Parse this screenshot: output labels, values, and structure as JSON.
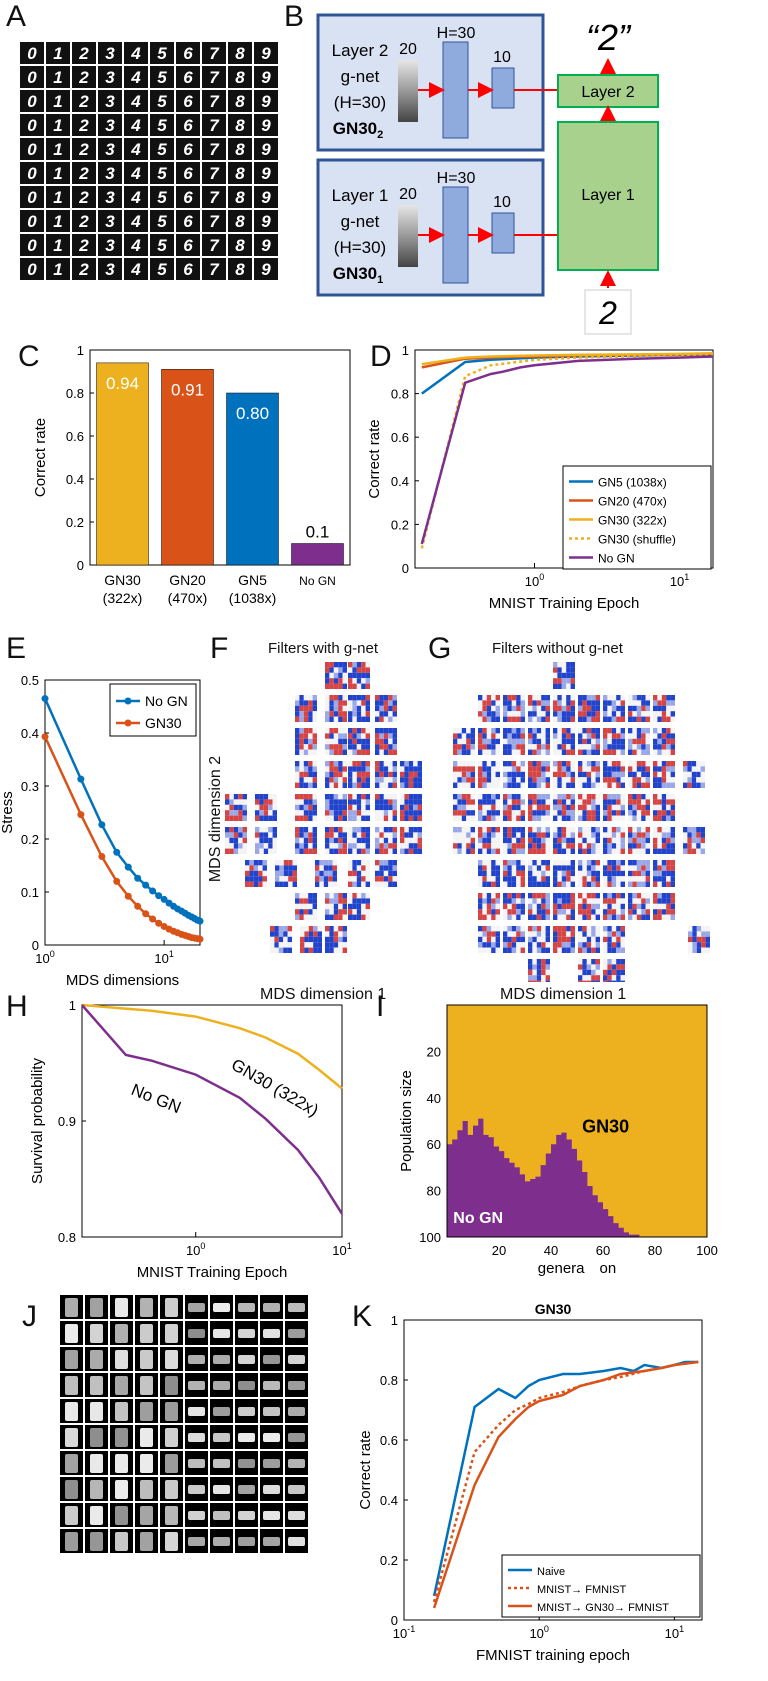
{
  "panel_letters": [
    "A",
    "B",
    "C",
    "D",
    "E",
    "F",
    "G",
    "H",
    "I",
    "J",
    "K"
  ],
  "panel_b": {
    "output_label": "“2”",
    "input_digit": "2",
    "layer2": {
      "title_lines": [
        "Layer 2",
        "g-net",
        "(H=30)"
      ],
      "gn_main": "GN30",
      "gn_sub": "2",
      "in_size": "20",
      "hidden": "H=30",
      "out_size": "10",
      "target": "Layer 2"
    },
    "layer1": {
      "title_lines": [
        "Layer 1",
        "g-net",
        "(H=30)"
      ],
      "gn_main": "GN30",
      "gn_sub": "1",
      "in_size": "20",
      "hidden": "H=30",
      "out_size": "10",
      "target": "Layer 1"
    },
    "colors": {
      "gnet_bg": "#d9e2f3",
      "gnet_border": "#2f5597",
      "hidden_fill": "#8faadc",
      "layer_fill": "#a9d18e",
      "layer_border": "#00b050",
      "arrow": "#ff0000"
    }
  },
  "panel_f_title": "Filters with g-net",
  "panel_g_title": "Filters without g-net",
  "panel_f_xlabel": "MDS dimension 1",
  "panel_g_xlabel": "MDS dimension 1",
  "panel_f_ylabel": "MDS dimension 2",
  "chart_data": [
    {
      "panel": "C",
      "type": "bar",
      "categories": [
        "GN30\n(322x)",
        "GN20\n(470x)",
        "GN5\n(1038x)",
        "No GN"
      ],
      "values": [
        0.94,
        0.91,
        0.8,
        0.1
      ],
      "value_labels": [
        "0.94",
        "0.91",
        "0.80",
        "0.1"
      ],
      "colors": [
        "#edb120",
        "#d95319",
        "#0072bd",
        "#7e2f8e"
      ],
      "ylabel": "Correct rate",
      "ylim": [
        0,
        1
      ],
      "yticks": [
        0,
        0.2,
        0.4,
        0.6,
        0.8,
        1
      ],
      "ytick_labels": [
        "0",
        "0.2",
        "0.4",
        "0.6",
        "0.8",
        "1"
      ]
    },
    {
      "panel": "D",
      "type": "line",
      "xscale": "log",
      "xlim": [
        0.15,
        17
      ],
      "ylim": [
        0,
        1
      ],
      "xlabel": "MNIST Training Epoch",
      "ylabel": "Correct rate",
      "xtick_labels": [
        "10^0",
        "10^1"
      ],
      "yticks": [
        0,
        0.2,
        0.4,
        0.6,
        0.8,
        1
      ],
      "ytick_labels": [
        "0",
        "0.2",
        "0.4",
        "0.6",
        "0.8",
        "1"
      ],
      "legend_position": "bottom-right",
      "series": [
        {
          "name": "GN5 (1038x)",
          "color": "#0072bd",
          "dash": false,
          "x": [
            0.167,
            0.333,
            0.5,
            1,
            2,
            5,
            10,
            17
          ],
          "y": [
            0.8,
            0.945,
            0.955,
            0.965,
            0.97,
            0.975,
            0.978,
            0.98
          ]
        },
        {
          "name": "GN20 (470x)",
          "color": "#d95319",
          "dash": false,
          "x": [
            0.167,
            0.333,
            0.5,
            1,
            2,
            5,
            10,
            17
          ],
          "y": [
            0.92,
            0.96,
            0.965,
            0.97,
            0.975,
            0.978,
            0.98,
            0.982
          ]
        },
        {
          "name": "GN30 (322x)",
          "color": "#edb120",
          "dash": false,
          "x": [
            0.167,
            0.333,
            0.5,
            1,
            2,
            5,
            10,
            17
          ],
          "y": [
            0.935,
            0.965,
            0.97,
            0.975,
            0.978,
            0.98,
            0.982,
            0.985
          ]
        },
        {
          "name": "GN30 (shuffle)",
          "color": "#edb120",
          "dash": true,
          "x": [
            0.167,
            0.333,
            0.5,
            1,
            2,
            5,
            10,
            17
          ],
          "y": [
            0.09,
            0.88,
            0.93,
            0.955,
            0.965,
            0.972,
            0.976,
            0.98
          ]
        },
        {
          "name": "No GN",
          "color": "#7e2f8e",
          "dash": false,
          "x": [
            0.167,
            0.333,
            0.5,
            0.6,
            0.8,
            1,
            2,
            5,
            10,
            17
          ],
          "y": [
            0.11,
            0.85,
            0.89,
            0.9,
            0.92,
            0.93,
            0.95,
            0.96,
            0.965,
            0.97
          ]
        }
      ]
    },
    {
      "panel": "E",
      "type": "line",
      "xscale": "log",
      "xlim": [
        1,
        20
      ],
      "ylim": [
        0,
        0.5
      ],
      "xlabel": "MDS dimensions",
      "ylabel": "Stress",
      "xtick_labels": [
        "10^0",
        "10^1"
      ],
      "yticks": [
        0,
        0.1,
        0.2,
        0.3,
        0.4,
        0.5
      ],
      "ytick_labels": [
        "0",
        "0.1",
        "0.2",
        "0.3",
        "0.4",
        "0.5"
      ],
      "legend_position": "top-right",
      "series": [
        {
          "name": "No GN",
          "color": "#0072bd",
          "x": [
            1,
            2,
            3,
            4,
            5,
            6,
            7,
            8,
            9,
            10,
            11,
            12,
            13,
            14,
            15,
            16,
            17,
            18,
            19,
            20
          ],
          "y": [
            0.465,
            0.313,
            0.227,
            0.175,
            0.147,
            0.126,
            0.113,
            0.102,
            0.093,
            0.086,
            0.079,
            0.073,
            0.068,
            0.064,
            0.06,
            0.056,
            0.053,
            0.05,
            0.047,
            0.045
          ]
        },
        {
          "name": "GN30",
          "color": "#d95319",
          "x": [
            1,
            2,
            3,
            4,
            5,
            6,
            7,
            8,
            9,
            10,
            11,
            12,
            13,
            14,
            15,
            16,
            17,
            18,
            19,
            20
          ],
          "y": [
            0.393,
            0.246,
            0.167,
            0.12,
            0.092,
            0.073,
            0.059,
            0.049,
            0.041,
            0.035,
            0.03,
            0.026,
            0.023,
            0.02,
            0.018,
            0.016,
            0.014,
            0.013,
            0.012,
            0.011
          ]
        }
      ]
    },
    {
      "panel": "H",
      "type": "line",
      "xscale": "log",
      "xlim": [
        0.167,
        10
      ],
      "ylim": [
        0.8,
        1
      ],
      "xlabel": "MNIST Training Epoch",
      "ylabel": "Survival probability",
      "xtick_labels": [
        "10^0",
        "10^1"
      ],
      "yticks": [
        0.8,
        0.9,
        1
      ],
      "ytick_labels": [
        "0.8",
        "0.9",
        "1"
      ],
      "annotations": [
        "GN30 (322x)",
        "No GN"
      ],
      "series": [
        {
          "name": "GN30 (322x)",
          "color": "#edb120",
          "x": [
            0.167,
            0.5,
            1,
            2,
            3,
            5,
            7,
            10
          ],
          "y": [
            1.0,
            0.995,
            0.99,
            0.98,
            0.972,
            0.958,
            0.944,
            0.928
          ]
        },
        {
          "name": "No GN",
          "color": "#7e2f8e",
          "x": [
            0.167,
            0.333,
            0.5,
            1,
            2,
            3,
            5,
            7,
            10
          ],
          "y": [
            1.0,
            0.957,
            0.952,
            0.94,
            0.92,
            0.902,
            0.875,
            0.851,
            0.82
          ]
        }
      ]
    },
    {
      "panel": "I",
      "type": "area",
      "xlim": [
        0,
        100
      ],
      "ylim": [
        0,
        100
      ],
      "y_reversed": true,
      "xlabel": "genera on",
      "ylabel": "Population size",
      "xticks": [
        20,
        40,
        60,
        80,
        100
      ],
      "yticks": [
        20,
        40,
        60,
        80,
        100
      ],
      "annotations": [
        "GN30",
        "No GN"
      ],
      "colors": {
        "GN30": "#edb120",
        "No GN": "#7e2f8e"
      },
      "series": [
        {
          "name": "No GN",
          "x": [
            1,
            3,
            5,
            7,
            9,
            11,
            13,
            15,
            17,
            19,
            21,
            23,
            25,
            27,
            29,
            31,
            33,
            35,
            37,
            39,
            41,
            43,
            45,
            47,
            49,
            51,
            53,
            55,
            57,
            59,
            61,
            63,
            65,
            67,
            69,
            71,
            73,
            75
          ],
          "y": [
            60,
            58,
            54,
            50,
            56,
            52,
            49,
            56,
            57,
            61,
            63,
            66,
            68,
            70,
            73,
            76,
            75,
            74,
            69,
            64,
            60,
            56,
            55,
            58,
            62,
            67,
            72,
            78,
            82,
            85,
            88,
            91,
            94,
            96,
            98,
            99,
            99,
            100
          ]
        }
      ]
    },
    {
      "panel": "K",
      "type": "line",
      "title": "GN30",
      "xscale": "log",
      "xlim": [
        0.1,
        16
      ],
      "ylim": [
        0,
        1
      ],
      "xlabel": "FMNIST training epoch",
      "ylabel": "Correct rate",
      "xtick_labels": [
        "10^-1",
        "10^0",
        "10^1"
      ],
      "yticks": [
        0,
        0.2,
        0.4,
        0.6,
        0.8,
        1
      ],
      "ytick_labels": [
        "0",
        "0.2",
        "0.4",
        "0.6",
        "0.8",
        "1"
      ],
      "legend_position": "bottom-right",
      "series": [
        {
          "name": "Naive",
          "color": "#0072bd",
          "dash": false,
          "x": [
            0.167,
            0.333,
            0.5,
            0.667,
            0.833,
            1,
            1.5,
            2,
            3,
            4,
            5,
            6,
            8,
            10,
            12,
            15
          ],
          "y": [
            0.08,
            0.71,
            0.77,
            0.74,
            0.78,
            0.8,
            0.82,
            0.82,
            0.83,
            0.84,
            0.83,
            0.85,
            0.84,
            0.85,
            0.86,
            0.86
          ]
        },
        {
          "name": "MNIST→ FMNIST",
          "color": "#d95319",
          "dash": true,
          "x": [
            0.167,
            0.333,
            0.5,
            0.667,
            0.833,
            1,
            1.5,
            2,
            3,
            4,
            6,
            8,
            10,
            15
          ],
          "y": [
            0.06,
            0.56,
            0.65,
            0.7,
            0.72,
            0.74,
            0.76,
            0.78,
            0.8,
            0.81,
            0.83,
            0.84,
            0.85,
            0.86
          ]
        },
        {
          "name": "MNIST→ GN30→ FMNIST",
          "color": "#d95319",
          "dash": false,
          "x": [
            0.167,
            0.333,
            0.5,
            0.667,
            0.833,
            1,
            1.5,
            2,
            3,
            4,
            6,
            8,
            10,
            15
          ],
          "y": [
            0.04,
            0.45,
            0.61,
            0.67,
            0.71,
            0.73,
            0.75,
            0.78,
            0.8,
            0.82,
            0.83,
            0.84,
            0.85,
            0.86
          ]
        }
      ]
    }
  ]
}
